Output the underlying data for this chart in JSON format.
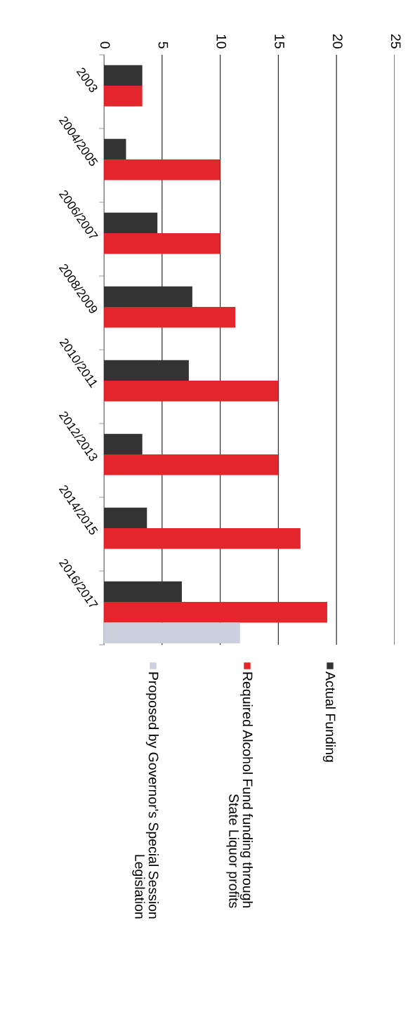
{
  "chart_data": {
    "type": "bar",
    "orientation": "horizontal",
    "categories": [
      "2003",
      "2004/2005",
      "2006/2007",
      "2008/2009",
      "2010/2011",
      "2012/2013",
      "2014/2015",
      "2016/2017"
    ],
    "series": [
      {
        "name": "Actual Funding",
        "color": "#333333",
        "values": [
          3.3,
          1.9,
          4.6,
          7.6,
          7.3,
          3.3,
          3.7,
          6.7
        ]
      },
      {
        "name": "Required Alcohol Fund funding through\nState Liquor profits",
        "color": "#e3262b",
        "values": [
          3.3,
          10,
          10,
          11.3,
          15,
          15,
          16.9,
          19.2
        ]
      },
      {
        "name": "Proposed by Governor's Special Session\nLegislation",
        "color": "#cbd0dc",
        "values": [
          null,
          null,
          null,
          null,
          null,
          null,
          null,
          11.7
        ]
      }
    ],
    "xlim": [
      0,
      25
    ],
    "xticks": [
      0,
      5,
      10,
      15,
      20,
      25
    ],
    "grid": "x",
    "legend": "bottom"
  }
}
